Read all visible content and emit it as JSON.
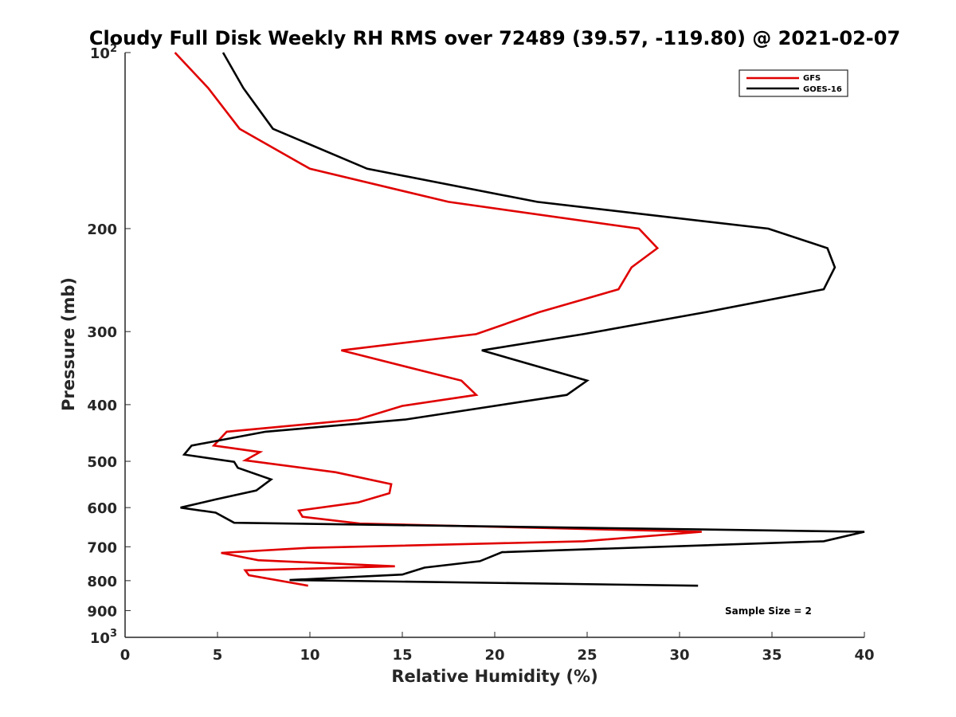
{
  "chart_data": {
    "type": "line",
    "title": "Cloudy Full Disk Weekly RH RMS over 72489 (39.57, -119.80) @ 2021-02-07",
    "xlabel": "Relative Humidity (%)",
    "ylabel": "Pressure (mb)",
    "xlim": [
      0,
      40
    ],
    "ylim": [
      100,
      1000
    ],
    "y_scale": "log",
    "y_reversed": true,
    "grid": false,
    "legend_position": "top-right",
    "x_ticks": [
      "0",
      "5",
      "10",
      "15",
      "20",
      "25",
      "30",
      "35",
      "40"
    ],
    "x_tick_values": [
      0,
      5,
      10,
      15,
      20,
      25,
      30,
      35,
      40
    ],
    "y_ticks": [
      {
        "value": 100,
        "base": "10",
        "exp": "2"
      },
      {
        "value": 200,
        "label": "200"
      },
      {
        "value": 300,
        "label": "300"
      },
      {
        "value": 400,
        "label": "400"
      },
      {
        "value": 500,
        "label": "500"
      },
      {
        "value": 600,
        "label": "600"
      },
      {
        "value": 700,
        "label": "700"
      },
      {
        "value": 800,
        "label": "800"
      },
      {
        "value": 900,
        "label": "900"
      },
      {
        "value": 1000,
        "base": "10",
        "exp": "3"
      }
    ],
    "series": [
      {
        "name": "GFS",
        "color": "#e00000",
        "points": [
          [
            2.7,
            100
          ],
          [
            4.5,
            115
          ],
          [
            6.2,
            135
          ],
          [
            10.0,
            158
          ],
          [
            17.5,
            180
          ],
          [
            27.8,
            200
          ],
          [
            28.8,
            216
          ],
          [
            27.4,
            233
          ],
          [
            26.7,
            254
          ],
          [
            22.4,
            278
          ],
          [
            19.0,
            303
          ],
          [
            11.7,
            323
          ],
          [
            18.2,
            364
          ],
          [
            19.0,
            385
          ],
          [
            15.0,
            402
          ],
          [
            12.6,
            424
          ],
          [
            5.5,
            445
          ],
          [
            4.8,
            470
          ],
          [
            7.3,
            482
          ],
          [
            6.5,
            498
          ],
          [
            11.4,
            522
          ],
          [
            14.4,
            547
          ],
          [
            14.3,
            567
          ],
          [
            12.6,
            588
          ],
          [
            9.4,
            607
          ],
          [
            9.6,
            622
          ],
          [
            12.7,
            639
          ],
          [
            31.2,
            660
          ],
          [
            24.8,
            685
          ],
          [
            9.9,
            703
          ],
          [
            5.2,
            717
          ],
          [
            7.2,
            738
          ],
          [
            14.6,
            756
          ],
          [
            6.5,
            768
          ],
          [
            6.7,
            783
          ],
          [
            9.9,
            816
          ]
        ]
      },
      {
        "name": "GOES-16",
        "color": "#000000",
        "points": [
          [
            5.3,
            100
          ],
          [
            6.4,
            115
          ],
          [
            8.0,
            135
          ],
          [
            13.1,
            158
          ],
          [
            22.3,
            180
          ],
          [
            34.8,
            200
          ],
          [
            38.0,
            216
          ],
          [
            38.4,
            233
          ],
          [
            37.8,
            254
          ],
          [
            31.4,
            278
          ],
          [
            24.8,
            303
          ],
          [
            19.3,
            323
          ],
          [
            25.0,
            364
          ],
          [
            23.9,
            385
          ],
          [
            15.2,
            424
          ],
          [
            7.6,
            445
          ],
          [
            3.6,
            470
          ],
          [
            3.2,
            487
          ],
          [
            5.9,
            501
          ],
          [
            6.1,
            513
          ],
          [
            7.9,
            537
          ],
          [
            7.1,
            561
          ],
          [
            4.9,
            581
          ],
          [
            3.0,
            600
          ],
          [
            4.9,
            612
          ],
          [
            5.9,
            637
          ],
          [
            40.0,
            660
          ],
          [
            37.8,
            685
          ],
          [
            20.4,
            715
          ],
          [
            19.2,
            741
          ],
          [
            16.2,
            760
          ],
          [
            15.0,
            781
          ],
          [
            8.9,
            798
          ],
          [
            31.0,
            816
          ]
        ]
      }
    ],
    "annotation": "Sample Size = 2"
  }
}
